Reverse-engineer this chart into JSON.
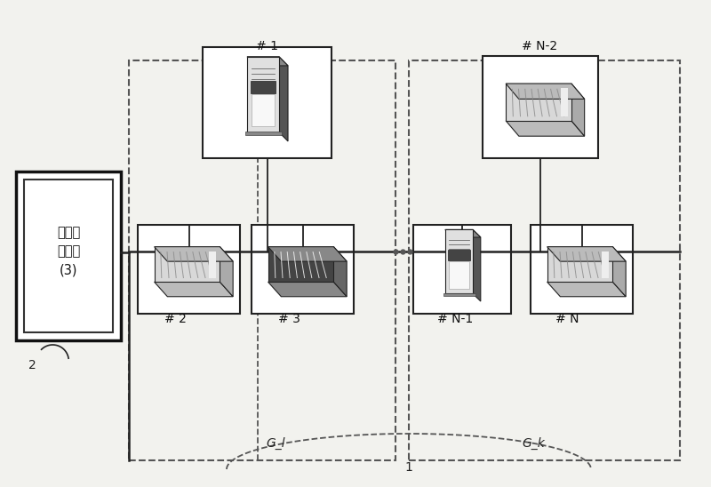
{
  "bg_color": "#f2f2ee",
  "outdoor_unit_label": "室外机\n控制部\n(3)",
  "outdoor_unit_number": "2",
  "group_l_label": "G_l",
  "group_k_label": "G_k",
  "bottom_label": "1",
  "ac_labels": [
    "# 1",
    "# N-2",
    "# 2",
    "# 3",
    "# N-1",
    "# N"
  ],
  "line_color": "#222222",
  "dashed_color": "#555555",
  "box_bg": "#ffffff",
  "dots_color": "#555555"
}
